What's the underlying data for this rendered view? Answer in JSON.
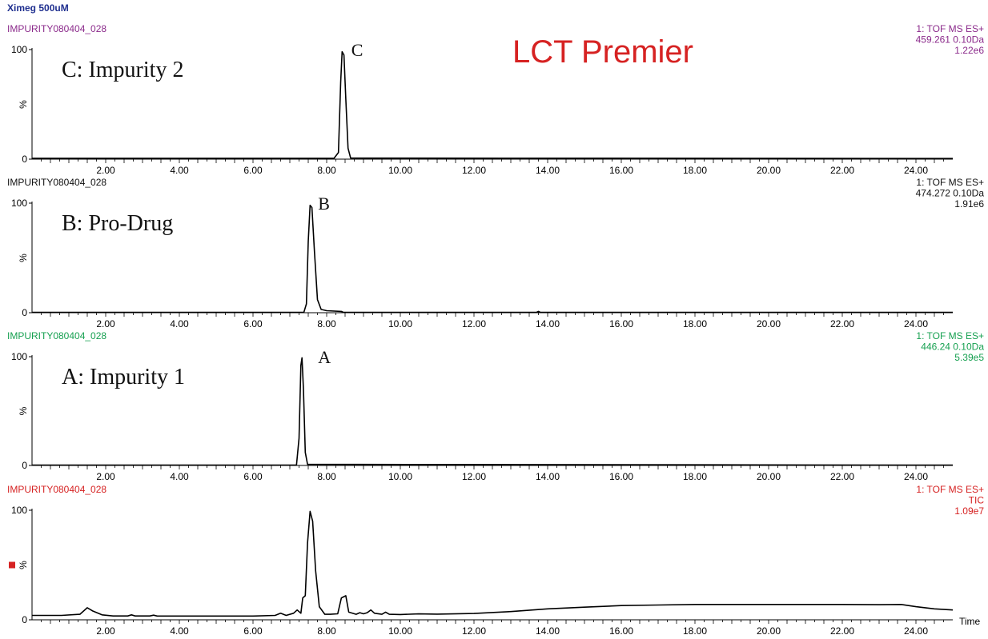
{
  "header": {
    "sample_name": "Ximeg 500uM",
    "sample_color": "#1f2f8f",
    "brand": "LCT Premier",
    "brand_color": "#d62222"
  },
  "chart_data": [
    {
      "type": "line",
      "file_label": "IMPURITY080404_028",
      "color": "#8b2a8b",
      "trace_color": "#000000",
      "info": [
        "1: TOF MS ES+",
        "459.261 0.10Da",
        "1.22e6"
      ],
      "annotation": "C: Impurity 2",
      "peak_label": "C",
      "peak_label_x": 8.45,
      "xlim": [
        0.0,
        25.0
      ],
      "ylim": [
        0,
        100
      ],
      "x_ticks": [
        2.0,
        4.0,
        6.0,
        8.0,
        10.0,
        12.0,
        14.0,
        16.0,
        18.0,
        20.0,
        22.0,
        24.0
      ],
      "x_tick_labels": [
        "2.00",
        "4.00",
        "6.00",
        "8.00",
        "10.00",
        "12.00",
        "14.00",
        "16.00",
        "18.00",
        "20.00",
        "22.00",
        "24.00"
      ],
      "y_tick_labels": [
        "100",
        "%",
        "0"
      ],
      "points": [
        [
          0.0,
          0.8
        ],
        [
          8.2,
          0.8
        ],
        [
          8.32,
          6
        ],
        [
          8.38,
          70
        ],
        [
          8.42,
          98
        ],
        [
          8.47,
          95
        ],
        [
          8.52,
          55
        ],
        [
          8.58,
          10
        ],
        [
          8.65,
          1
        ],
        [
          25.0,
          0.6
        ]
      ]
    },
    {
      "type": "line",
      "file_label": "IMPURITY080404_028",
      "color": "#111111",
      "trace_color": "#000000",
      "info": [
        "1: TOF MS ES+",
        "474.272 0.10Da",
        "1.91e6"
      ],
      "annotation": "B: Pro-Drug",
      "peak_label": "B",
      "peak_label_x": 7.55,
      "xlim": [
        0.0,
        25.0
      ],
      "ylim": [
        0,
        100
      ],
      "x_ticks": [
        2.0,
        4.0,
        6.0,
        8.0,
        10.0,
        12.0,
        14.0,
        16.0,
        18.0,
        20.0,
        22.0,
        24.0
      ],
      "x_tick_labels": [
        "2.00",
        "4.00",
        "6.00",
        "8.00",
        "10.00",
        "12.00",
        "14.00",
        "16.00",
        "18.00",
        "20.00",
        "22.00",
        "24.00"
      ],
      "y_tick_labels": [
        "100",
        "%",
        "0"
      ],
      "points": [
        [
          0.0,
          0.3
        ],
        [
          7.38,
          0.3
        ],
        [
          7.45,
          8
        ],
        [
          7.5,
          65
        ],
        [
          7.55,
          98
        ],
        [
          7.6,
          96
        ],
        [
          7.67,
          55
        ],
        [
          7.75,
          12
        ],
        [
          7.85,
          3
        ],
        [
          8.0,
          1.8
        ],
        [
          8.4,
          1.2
        ],
        [
          8.45,
          0.4
        ],
        [
          13.7,
          0.4
        ],
        [
          13.75,
          1.2
        ],
        [
          13.8,
          0.4
        ],
        [
          25.0,
          0.3
        ]
      ]
    },
    {
      "type": "line",
      "file_label": "IMPURITY080404_028",
      "color": "#16a050",
      "trace_color": "#000000",
      "info": [
        "1: TOF MS ES+",
        "446.24 0.10Da",
        "5.39e5"
      ],
      "annotation": "A: Impurity 1",
      "peak_label": "A",
      "peak_label_x": 7.55,
      "xlim": [
        0.0,
        25.0
      ],
      "ylim": [
        0,
        100
      ],
      "x_ticks": [
        2.0,
        4.0,
        6.0,
        8.0,
        10.0,
        12.0,
        14.0,
        16.0,
        18.0,
        20.0,
        22.0,
        24.0
      ],
      "x_tick_labels": [
        "2.00",
        "4.00",
        "6.00",
        "8.00",
        "10.00",
        "12.00",
        "14.00",
        "16.00",
        "18.00",
        "20.00",
        "22.00",
        "24.00"
      ],
      "y_tick_labels": [
        "100",
        "%",
        "0"
      ],
      "points": [
        [
          0.0,
          0.3
        ],
        [
          7.18,
          0.3
        ],
        [
          7.25,
          25
        ],
        [
          7.3,
          92
        ],
        [
          7.33,
          99
        ],
        [
          7.37,
          70
        ],
        [
          7.42,
          12
        ],
        [
          7.48,
          1
        ],
        [
          25.0,
          0.3
        ]
      ]
    },
    {
      "type": "line",
      "file_label": "IMPURITY080404_028",
      "color": "#d62222",
      "trace_color": "#000000",
      "info": [
        "1: TOF MS ES+",
        "TIC",
        "1.09e7"
      ],
      "annotation": "",
      "peak_label": "",
      "xlim": [
        0.0,
        25.0
      ],
      "ylim": [
        0,
        100
      ],
      "x_ticks": [
        2.0,
        4.0,
        6.0,
        8.0,
        10.0,
        12.0,
        14.0,
        16.0,
        18.0,
        20.0,
        22.0,
        24.0
      ],
      "x_tick_labels": [
        "2.00",
        "4.00",
        "6.00",
        "8.00",
        "10.00",
        "12.00",
        "14.00",
        "16.00",
        "18.00",
        "20.00",
        "22.00",
        "24.00"
      ],
      "y_tick_labels": [
        "100",
        "%",
        "0"
      ],
      "xlabel": "Time",
      "points": [
        [
          0.0,
          4
        ],
        [
          0.8,
          4
        ],
        [
          1.3,
          5
        ],
        [
          1.5,
          11
        ],
        [
          1.65,
          8
        ],
        [
          1.9,
          4.5
        ],
        [
          2.2,
          3.5
        ],
        [
          2.6,
          3.5
        ],
        [
          2.7,
          4.5
        ],
        [
          2.8,
          3.5
        ],
        [
          3.2,
          3.5
        ],
        [
          3.3,
          4.2
        ],
        [
          3.4,
          3.4
        ],
        [
          6.0,
          3.4
        ],
        [
          6.6,
          4
        ],
        [
          6.75,
          6
        ],
        [
          6.9,
          4
        ],
        [
          7.1,
          6
        ],
        [
          7.2,
          9
        ],
        [
          7.3,
          6
        ],
        [
          7.35,
          20
        ],
        [
          7.42,
          22
        ],
        [
          7.48,
          70
        ],
        [
          7.55,
          99
        ],
        [
          7.62,
          90
        ],
        [
          7.7,
          45
        ],
        [
          7.8,
          12
        ],
        [
          7.95,
          5
        ],
        [
          8.1,
          5
        ],
        [
          8.3,
          5.5
        ],
        [
          8.4,
          20
        ],
        [
          8.52,
          22
        ],
        [
          8.6,
          7
        ],
        [
          8.8,
          5
        ],
        [
          8.9,
          6.5
        ],
        [
          9.0,
          5.5
        ],
        [
          9.1,
          6.5
        ],
        [
          9.2,
          9
        ],
        [
          9.3,
          6
        ],
        [
          9.5,
          5
        ],
        [
          9.6,
          7
        ],
        [
          9.7,
          5
        ],
        [
          10.0,
          4.8
        ],
        [
          10.5,
          5.4
        ],
        [
          11.0,
          5.2
        ],
        [
          12.0,
          5.8
        ],
        [
          13.0,
          7.5
        ],
        [
          14.0,
          10
        ],
        [
          15.0,
          11.5
        ],
        [
          16.0,
          13
        ],
        [
          17.0,
          13.5
        ],
        [
          18.0,
          14
        ],
        [
          19.0,
          14
        ],
        [
          20.0,
          14
        ],
        [
          21.0,
          14
        ],
        [
          22.0,
          14
        ],
        [
          23.0,
          13.8
        ],
        [
          23.6,
          14
        ],
        [
          24.0,
          12
        ],
        [
          24.5,
          10
        ],
        [
          25.0,
          9
        ]
      ]
    }
  ]
}
